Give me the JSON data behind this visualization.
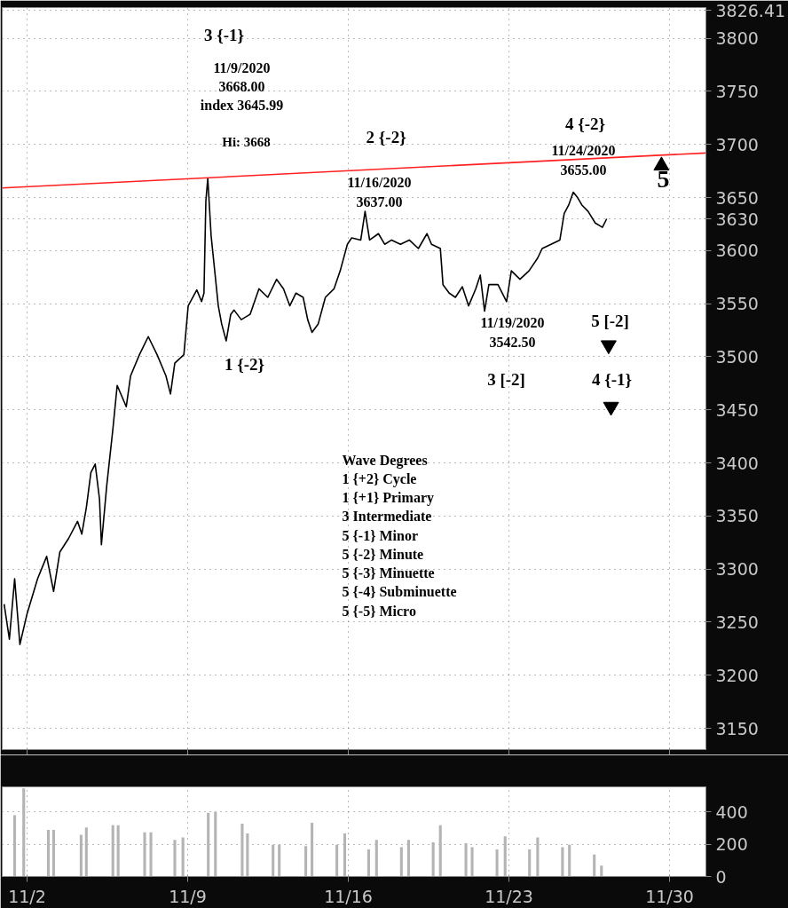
{
  "chart_data": [
    {
      "type": "line",
      "xlim": [
        "2020-10-31T22:00",
        "2020-12-01T14:00"
      ],
      "ylim": [
        3130,
        3829
      ],
      "xticks": [
        {
          "value": "2020-11-02",
          "label": null
        },
        {
          "value": "2020-11-09",
          "label": null
        },
        {
          "value": "2020-11-16",
          "label": null
        },
        {
          "value": "2020-11-23",
          "label": null
        },
        {
          "value": "2020-11-30",
          "label": null
        }
      ],
      "yticks": [
        3150,
        3200,
        3250,
        3300,
        3350,
        3400,
        3450,
        3500,
        3550,
        3600,
        3650,
        3700,
        3750,
        3800,
        3630,
        3826.41
      ],
      "tick_labels": "y",
      "grid": true,
      "series": [
        {
          "type": "line",
          "color": "#000000",
          "x": [
            "2020-11-01T00:00",
            "2020-11-01T05:30",
            "2020-11-01T11:00",
            "2020-11-01T16:30",
            "2020-11-02T00:00",
            "2020-11-02T11:00",
            "2020-11-02T20:30",
            "2020-11-03T03:45",
            "2020-11-03T10:15",
            "2020-11-03T19:30",
            "2020-11-04T04:45",
            "2020-11-04T09:15",
            "2020-11-04T14:00",
            "2020-11-04T18:45",
            "2020-11-04T23:15",
            "2020-11-05T03:45",
            "2020-11-05T05:45",
            "2020-11-05T11:15",
            "2020-11-05T17:45",
            "2020-11-05T22:15",
            "2020-11-06T07:45",
            "2020-11-06T12:15",
            "2020-11-06T21:30",
            "2020-11-07T06:45",
            "2020-11-07T16:00",
            "2020-11-08T01:15",
            "2020-11-08T06:00",
            "2020-11-08T10:30",
            "2020-11-08T20:00",
            "2020-11-09T00:30",
            "2020-11-09T09:30",
            "2020-11-09T14:30",
            "2020-11-09T17:00",
            "2020-11-09T19:00",
            "2020-11-09T21:00",
            "2020-11-10T00:30",
            "2020-11-10T04:15",
            "2020-11-10T08:00",
            "2020-11-10T11:30",
            "2020-11-10T16:15",
            "2020-11-10T21:00",
            "2020-11-11T00:30",
            "2020-11-11T08:00",
            "2020-11-11T17:15",
            "2020-11-12T02:30",
            "2020-11-12T11:45",
            "2020-11-12T21:00",
            "2020-11-13T04:15",
            "2020-11-13T10:45",
            "2020-11-13T17:15",
            "2020-11-14T00:45",
            "2020-11-14T05:30",
            "2020-11-14T10:00",
            "2020-11-14T16:30",
            "2020-11-15T00:00",
            "2020-11-15T09:00",
            "2020-11-15T15:30",
            "2020-11-15T23:00",
            "2020-11-16T03:30",
            "2020-11-16T13:00",
            "2020-11-16T17:30",
            "2020-11-16T22:15",
            "2020-11-17T07:30",
            "2020-11-17T14:00",
            "2020-11-17T21:15",
            "2020-11-18T06:30",
            "2020-11-18T15:45",
            "2020-11-19T01:15",
            "2020-11-19T10:15",
            "2020-11-19T15:00",
            "2020-11-20T00:15",
            "2020-11-20T03:00",
            "2020-11-20T09:30",
            "2020-11-20T16:00",
            "2020-11-20T23:15",
            "2020-11-21T05:45",
            "2020-11-21T13:15",
            "2020-11-21T18:00",
            "2020-11-21T22:30",
            "2020-11-22T03:00",
            "2020-11-22T12:30",
            "2020-11-22T21:30",
            "2020-11-23T02:30",
            "2020-11-23T11:30",
            "2020-11-23T21:00",
            "2020-11-24T06:00",
            "2020-11-24T10:45",
            "2020-11-24T20:00",
            "2020-11-25T05:15",
            "2020-11-25T09:45",
            "2020-11-25T14:30",
            "2020-11-25T19:15",
            "2020-11-25T23:45",
            "2020-11-26T04:15",
            "2020-11-26T10:45",
            "2020-11-26T18:15",
            "2020-11-27T01:45",
            "2020-11-27T06:15"
          ],
          "values": [
            3267,
            3234,
            3291,
            3229,
            3258,
            3291,
            3312,
            3279,
            3316,
            3329,
            3345,
            3333,
            3358,
            3391,
            3399,
            3366,
            3323,
            3378,
            3432,
            3473,
            3453,
            3482,
            3502,
            3519,
            3502,
            3482,
            3465,
            3494,
            3502,
            3548,
            3563,
            3552,
            3560,
            3647,
            3668,
            3614,
            3581,
            3548,
            3531,
            3515,
            3540,
            3544,
            3535,
            3540,
            3564,
            3556,
            3573,
            3564,
            3548,
            3560,
            3556,
            3535,
            3523,
            3531,
            3556,
            3564,
            3581,
            3606,
            3612,
            3610,
            3637,
            3610,
            3616,
            3606,
            3610,
            3606,
            3610,
            3602,
            3616,
            3606,
            3602,
            3568,
            3560,
            3556,
            3566,
            3548,
            3564,
            3577,
            3543,
            3568,
            3568,
            3552,
            3581,
            3573,
            3581,
            3593,
            3602,
            3606,
            3610,
            3635,
            3643,
            3655,
            3650,
            3643,
            3637,
            3626,
            3622,
            3630
          ]
        },
        {
          "type": "line",
          "color": "#ff2020",
          "x": [
            "2020-10-31T22:00",
            "2020-12-01T14:00"
          ],
          "values": [
            3659,
            3692
          ]
        },
        {
          "type": "scatter",
          "marker": "triangle",
          "color": "#000000",
          "x": [
            "2020-11-29T15:30"
          ],
          "values": [
            3680
          ]
        },
        {
          "type": "scatter",
          "color": "#000000",
          "x": [
            "2020-11-27T08:15",
            "2020-11-27T10:45"
          ],
          "values": [
            3511,
            3453
          ]
        }
      ],
      "annotations": [
        "3 {-1}",
        "11/9/2020\n3668.00\nindex 3645.99",
        "Hi: 3668",
        "1 {-2}",
        "2  {-2}",
        "11/16/2020\n3637.00",
        "4 {-2}",
        "11/24/2020\n3655.00",
        "5",
        "11/19/2020\n3542.50",
        "5 [-2]",
        "3 [-2]",
        "4 {-1}",
        "Wave Degrees\n1 {+2} Cycle\n1 {+1}  Primary\n3          Intermediate\n5 {-1}   Minor\n5 {-2}   Minute\n5 {-3} Minuette\n5 {-4} Subminuette\n5 {-5} Micro"
      ]
    },
    {
      "type": "bar",
      "color": "#b4b4b4",
      "xlim": [
        "2020-10-31T22:00",
        "2020-12-01T14:00"
      ],
      "ylim": [
        0,
        555
      ],
      "xticks": [
        {
          "value": "2020-11-02",
          "label": "11/2"
        },
        {
          "value": "2020-11-09",
          "label": "11/9"
        },
        {
          "value": "2020-11-16",
          "label": "11/16"
        },
        {
          "value": "2020-11-23",
          "label": "11/23"
        },
        {
          "value": "2020-11-30",
          "label": "11/30"
        }
      ],
      "yticks": [
        0,
        200,
        400
      ],
      "grid": true,
      "x": [
        "2020-11-01T11:00",
        "2020-11-01T20:30",
        "2020-11-02T22:15",
        "2020-11-03T03:45",
        "2020-11-04T08:30",
        "2020-11-04T14:00",
        "2020-11-05T17:45",
        "2020-11-05T23:15",
        "2020-11-07T03:00",
        "2020-11-07T09:30",
        "2020-11-08T10:30",
        "2020-11-08T19:00",
        "2020-11-09T21:30",
        "2020-11-10T05:00",
        "2020-11-11T09:00",
        "2020-11-11T14:30",
        "2020-11-12T17:15",
        "2020-11-12T23:45",
        "2020-11-14T03:30",
        "2020-11-14T10:00",
        "2020-11-15T12:00",
        "2020-11-15T20:15",
        "2020-11-16T21:15",
        "2020-11-17T05:30",
        "2020-11-18T07:30",
        "2020-11-18T15:00",
        "2020-11-19T16:45",
        "2020-11-20T00:15",
        "2020-11-21T03:00",
        "2020-11-21T09:30",
        "2020-11-22T11:30",
        "2020-11-22T20:00",
        "2020-11-23T21:30",
        "2020-11-24T06:00",
        "2020-11-25T08:00",
        "2020-11-25T15:15",
        "2020-11-26T17:15",
        "2020-11-27T00:45"
      ],
      "values": [
        379,
        545,
        288,
        288,
        258,
        303,
        318,
        318,
        273,
        273,
        227,
        242,
        394,
        400,
        327,
        267,
        197,
        197,
        188,
        333,
        197,
        267,
        167,
        227,
        182,
        227,
        212,
        318,
        206,
        182,
        167,
        248,
        167,
        242,
        182,
        197,
        136,
        67
      ]
    }
  ]
}
